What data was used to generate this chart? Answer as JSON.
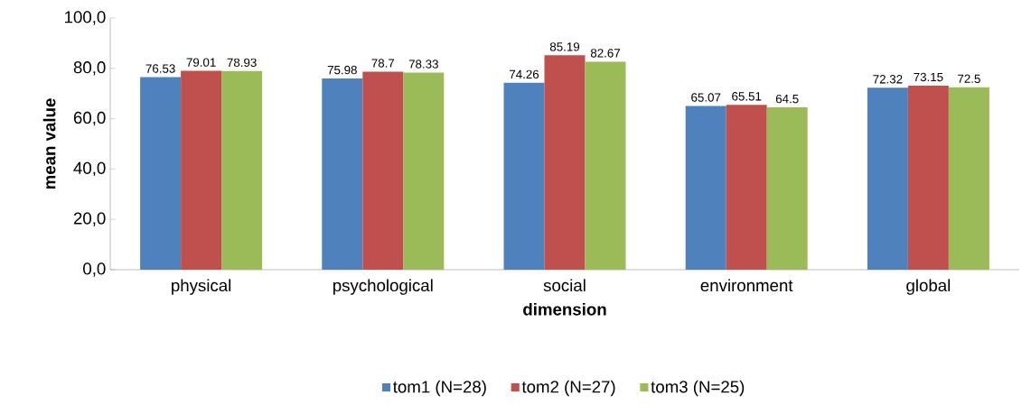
{
  "chart_data": {
    "type": "bar",
    "xlabel": "dimension",
    "ylabel": "mean value",
    "categories": [
      "physical",
      "psychological",
      "social",
      "environment",
      "global"
    ],
    "series": [
      {
        "name": "tom1 (N=28)",
        "color": "#4f81bd",
        "values": [
          76.53,
          75.98,
          74.26,
          65.07,
          72.32
        ]
      },
      {
        "name": "tom2 (N=27)",
        "color": "#c0504d",
        "values": [
          79.01,
          78.7,
          85.19,
          65.51,
          73.15
        ]
      },
      {
        "name": "tom3 (N=25)",
        "color": "#9bbb59",
        "values": [
          78.93,
          78.33,
          82.67,
          64.5,
          72.5
        ]
      }
    ],
    "ylim": [
      0,
      100
    ],
    "yticks": [
      {
        "value": 0,
        "label": "0,0"
      },
      {
        "value": 20,
        "label": "20,0"
      },
      {
        "value": 40,
        "label": "40,0"
      },
      {
        "value": 60,
        "label": "60,0"
      },
      {
        "value": 80,
        "label": "80,0"
      },
      {
        "value": 100,
        "label": "100,0"
      }
    ],
    "data_labels": true,
    "legend": "bottom",
    "grid": false
  }
}
